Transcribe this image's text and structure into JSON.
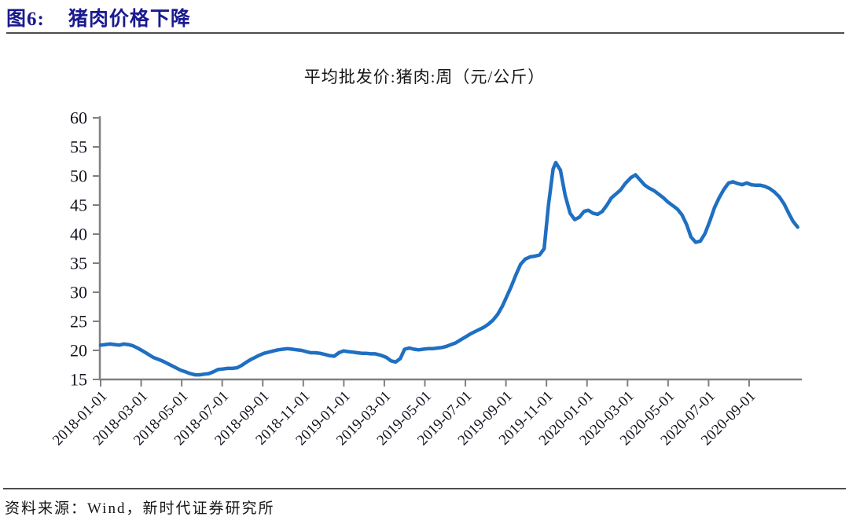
{
  "figure": {
    "label": "图6:",
    "title": "猪肉价格下降"
  },
  "source_note": "资料来源：Wind，新时代证券研究所",
  "colors": {
    "line": "#1F6FC2",
    "axis": "#808080",
    "header_title": "#1a1a8f",
    "rule": "#4d4d4d",
    "tick_text": "#141420"
  },
  "chart_data": {
    "type": "line",
    "title": "平均批发价:猪肉:周（元/公斤）",
    "xlabel": "",
    "ylabel": "",
    "ylim": [
      15,
      60
    ],
    "y_ticks": [
      60,
      55,
      50,
      45,
      40,
      35,
      30,
      25,
      20,
      15
    ],
    "grid": false,
    "legend_position": "none",
    "x_tick_labels": [
      "2018-01-01",
      "2018-03-01",
      "2018-05-01",
      "2018-07-01",
      "2018-09-01",
      "2018-11-01",
      "2019-01-01",
      "2019-03-01",
      "2019-05-01",
      "2019-07-01",
      "2019-09-01",
      "2019-11-01",
      "2020-01-01",
      "2020-03-01",
      "2020-05-01",
      "2020-07-01",
      "2020-09-01"
    ],
    "series": [
      {
        "name": "平均批发价:猪肉:周（元/公斤）",
        "color": "#1F6FC2",
        "points": [
          [
            "2018-01-01",
            20.9
          ],
          [
            "2018-01-08",
            21.0
          ],
          [
            "2018-01-15",
            21.1
          ],
          [
            "2018-01-22",
            21.0
          ],
          [
            "2018-01-29",
            20.9
          ],
          [
            "2018-02-05",
            21.1
          ],
          [
            "2018-02-12",
            21.0
          ],
          [
            "2018-02-19",
            20.8
          ],
          [
            "2018-02-26",
            20.4
          ],
          [
            "2018-03-05",
            19.8
          ],
          [
            "2018-03-12",
            19.3
          ],
          [
            "2018-03-19",
            18.8
          ],
          [
            "2018-03-26",
            18.5
          ],
          [
            "2018-04-02",
            18.2
          ],
          [
            "2018-04-09",
            17.8
          ],
          [
            "2018-04-16",
            17.4
          ],
          [
            "2018-04-23",
            17.0
          ],
          [
            "2018-04-30",
            16.6
          ],
          [
            "2018-05-07",
            16.3
          ],
          [
            "2018-05-14",
            16.0
          ],
          [
            "2018-05-21",
            15.8
          ],
          [
            "2018-05-28",
            15.8
          ],
          [
            "2018-06-04",
            15.9
          ],
          [
            "2018-06-11",
            16.0
          ],
          [
            "2018-06-18",
            16.3
          ],
          [
            "2018-06-25",
            16.7
          ],
          [
            "2018-07-02",
            16.8
          ],
          [
            "2018-07-09",
            16.9
          ],
          [
            "2018-07-16",
            16.9
          ],
          [
            "2018-07-23",
            17.0
          ],
          [
            "2018-07-30",
            17.4
          ],
          [
            "2018-08-06",
            17.9
          ],
          [
            "2018-08-13",
            18.4
          ],
          [
            "2018-08-20",
            18.8
          ],
          [
            "2018-08-27",
            19.2
          ],
          [
            "2018-09-03",
            19.5
          ],
          [
            "2018-09-10",
            19.7
          ],
          [
            "2018-09-17",
            19.9
          ],
          [
            "2018-09-24",
            20.1
          ],
          [
            "2018-10-01",
            20.2
          ],
          [
            "2018-10-08",
            20.3
          ],
          [
            "2018-10-15",
            20.2
          ],
          [
            "2018-10-22",
            20.1
          ],
          [
            "2018-10-29",
            20.0
          ],
          [
            "2018-11-05",
            19.8
          ],
          [
            "2018-11-12",
            19.6
          ],
          [
            "2018-11-19",
            19.6
          ],
          [
            "2018-11-26",
            19.5
          ],
          [
            "2018-12-03",
            19.3
          ],
          [
            "2018-12-10",
            19.1
          ],
          [
            "2018-12-17",
            19.0
          ],
          [
            "2018-12-24",
            19.6
          ],
          [
            "2018-12-31",
            19.9
          ],
          [
            "2019-01-07",
            19.8
          ],
          [
            "2019-01-14",
            19.7
          ],
          [
            "2019-01-21",
            19.6
          ],
          [
            "2019-01-28",
            19.5
          ],
          [
            "2019-02-04",
            19.5
          ],
          [
            "2019-02-11",
            19.4
          ],
          [
            "2019-02-18",
            19.4
          ],
          [
            "2019-02-25",
            19.2
          ],
          [
            "2019-03-04",
            18.8
          ],
          [
            "2019-03-11",
            18.2
          ],
          [
            "2019-03-18",
            18.0
          ],
          [
            "2019-03-25",
            18.6
          ],
          [
            "2019-04-01",
            20.2
          ],
          [
            "2019-04-08",
            20.4
          ],
          [
            "2019-04-15",
            20.2
          ],
          [
            "2019-04-22",
            20.1
          ],
          [
            "2019-04-29",
            20.2
          ],
          [
            "2019-05-06",
            20.3
          ],
          [
            "2019-05-13",
            20.3
          ],
          [
            "2019-05-20",
            20.4
          ],
          [
            "2019-05-27",
            20.5
          ],
          [
            "2019-06-03",
            20.7
          ],
          [
            "2019-06-10",
            21.0
          ],
          [
            "2019-06-17",
            21.3
          ],
          [
            "2019-06-24",
            21.8
          ],
          [
            "2019-07-01",
            22.3
          ],
          [
            "2019-07-08",
            22.8
          ],
          [
            "2019-07-15",
            23.2
          ],
          [
            "2019-07-22",
            23.6
          ],
          [
            "2019-07-29",
            24.0
          ],
          [
            "2019-08-05",
            24.5
          ],
          [
            "2019-08-12",
            25.2
          ],
          [
            "2019-08-19",
            26.2
          ],
          [
            "2019-08-26",
            27.6
          ],
          [
            "2019-09-02",
            29.2
          ],
          [
            "2019-09-09",
            31.0
          ],
          [
            "2019-09-16",
            33.0
          ],
          [
            "2019-09-23",
            34.8
          ],
          [
            "2019-09-30",
            35.7
          ],
          [
            "2019-10-07",
            36.1
          ],
          [
            "2019-10-14",
            36.2
          ],
          [
            "2019-10-21",
            36.4
          ],
          [
            "2019-10-28",
            37.5
          ],
          [
            "2019-11-04",
            45.0
          ],
          [
            "2019-11-11",
            51.2
          ],
          [
            "2019-11-15",
            52.3
          ],
          [
            "2019-11-22",
            51.0
          ],
          [
            "2019-11-29",
            46.7
          ],
          [
            "2019-12-06",
            43.6
          ],
          [
            "2019-12-13",
            42.5
          ],
          [
            "2019-12-20",
            42.9
          ],
          [
            "2019-12-27",
            43.9
          ],
          [
            "2020-01-03",
            44.1
          ],
          [
            "2020-01-10",
            43.6
          ],
          [
            "2020-01-17",
            43.4
          ],
          [
            "2020-01-24",
            43.9
          ],
          [
            "2020-01-31",
            45.0
          ],
          [
            "2020-02-07",
            46.2
          ],
          [
            "2020-02-14",
            46.9
          ],
          [
            "2020-02-21",
            47.6
          ],
          [
            "2020-02-28",
            48.7
          ],
          [
            "2020-03-06",
            49.7
          ],
          [
            "2020-03-13",
            50.2
          ],
          [
            "2020-03-20",
            49.3
          ],
          [
            "2020-03-27",
            48.4
          ],
          [
            "2020-04-03",
            47.9
          ],
          [
            "2020-04-10",
            47.5
          ],
          [
            "2020-04-17",
            46.9
          ],
          [
            "2020-04-24",
            46.3
          ],
          [
            "2020-05-01",
            45.5
          ],
          [
            "2020-05-08",
            44.9
          ],
          [
            "2020-05-15",
            44.3
          ],
          [
            "2020-05-22",
            43.3
          ],
          [
            "2020-05-29",
            41.6
          ],
          [
            "2020-06-05",
            39.5
          ],
          [
            "2020-06-12",
            38.6
          ],
          [
            "2020-06-19",
            38.8
          ],
          [
            "2020-06-26",
            40.1
          ],
          [
            "2020-07-03",
            42.3
          ],
          [
            "2020-07-10",
            44.6
          ],
          [
            "2020-07-17",
            46.3
          ],
          [
            "2020-07-24",
            47.7
          ],
          [
            "2020-07-31",
            48.8
          ],
          [
            "2020-08-07",
            49.0
          ],
          [
            "2020-08-14",
            48.7
          ],
          [
            "2020-08-21",
            48.5
          ],
          [
            "2020-08-28",
            48.8
          ],
          [
            "2020-09-04",
            48.5
          ],
          [
            "2020-09-11",
            48.4
          ],
          [
            "2020-09-18",
            48.4
          ],
          [
            "2020-09-25",
            48.2
          ],
          [
            "2020-10-02",
            47.8
          ],
          [
            "2020-10-09",
            47.2
          ],
          [
            "2020-10-16",
            46.4
          ],
          [
            "2020-10-23",
            45.2
          ],
          [
            "2020-10-30",
            43.6
          ],
          [
            "2020-11-06",
            42.2
          ],
          [
            "2020-11-13",
            41.2
          ]
        ]
      }
    ]
  }
}
